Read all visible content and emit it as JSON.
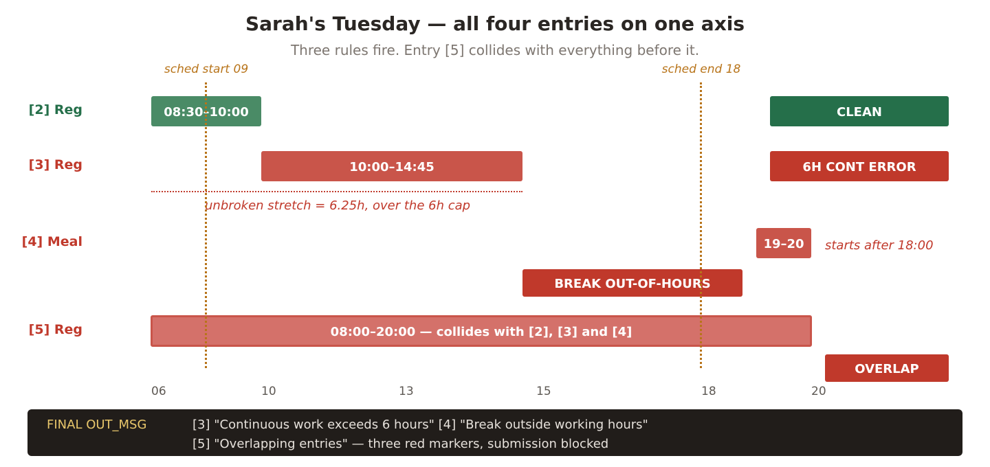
{
  "header": {
    "title": "Sarah's Tuesday — all four entries on one axis",
    "subtitle": "Three rules fire. Entry [5] collides with everything before it."
  },
  "schedule": {
    "start_label": "sched start 09",
    "end_label": "sched end 18"
  },
  "rows": {
    "r2": {
      "label": "[2] Reg",
      "bar": "08:30–10:00",
      "status": "CLEAN"
    },
    "r3": {
      "label": "[3] Reg",
      "bar": "10:00–14:45",
      "status": "6H CONT ERROR",
      "note": "unbroken stretch = 6.25h, over the 6h cap"
    },
    "r4": {
      "label": "[4] Meal",
      "bar": "19–20",
      "note": "starts after 18:00",
      "status": "BREAK OUT-OF-HOURS"
    },
    "r5": {
      "label": "[5] Reg",
      "bar": "08:00–20:00 — collides with [2], [3] and [4]",
      "status": "OVERLAP"
    }
  },
  "axis": {
    "ticks": [
      "06",
      "10",
      "13",
      "15",
      "18",
      "20"
    ]
  },
  "footer": {
    "label": "FINAL OUT_MSG",
    "line1": "[3] \"Continuous work exceeds 6 hours\" [4] \"Break outside working hours\"",
    "line2": "[5] \"Overlapping entries\" — three red markers, submission blocked"
  },
  "colors": {
    "green_dark": "#256f4a",
    "green_light": "#4a8b66",
    "red_dark": "#c0392b",
    "red_mid": "#c9554a",
    "red_light": "#d4716a",
    "amber": "#b8741a"
  }
}
